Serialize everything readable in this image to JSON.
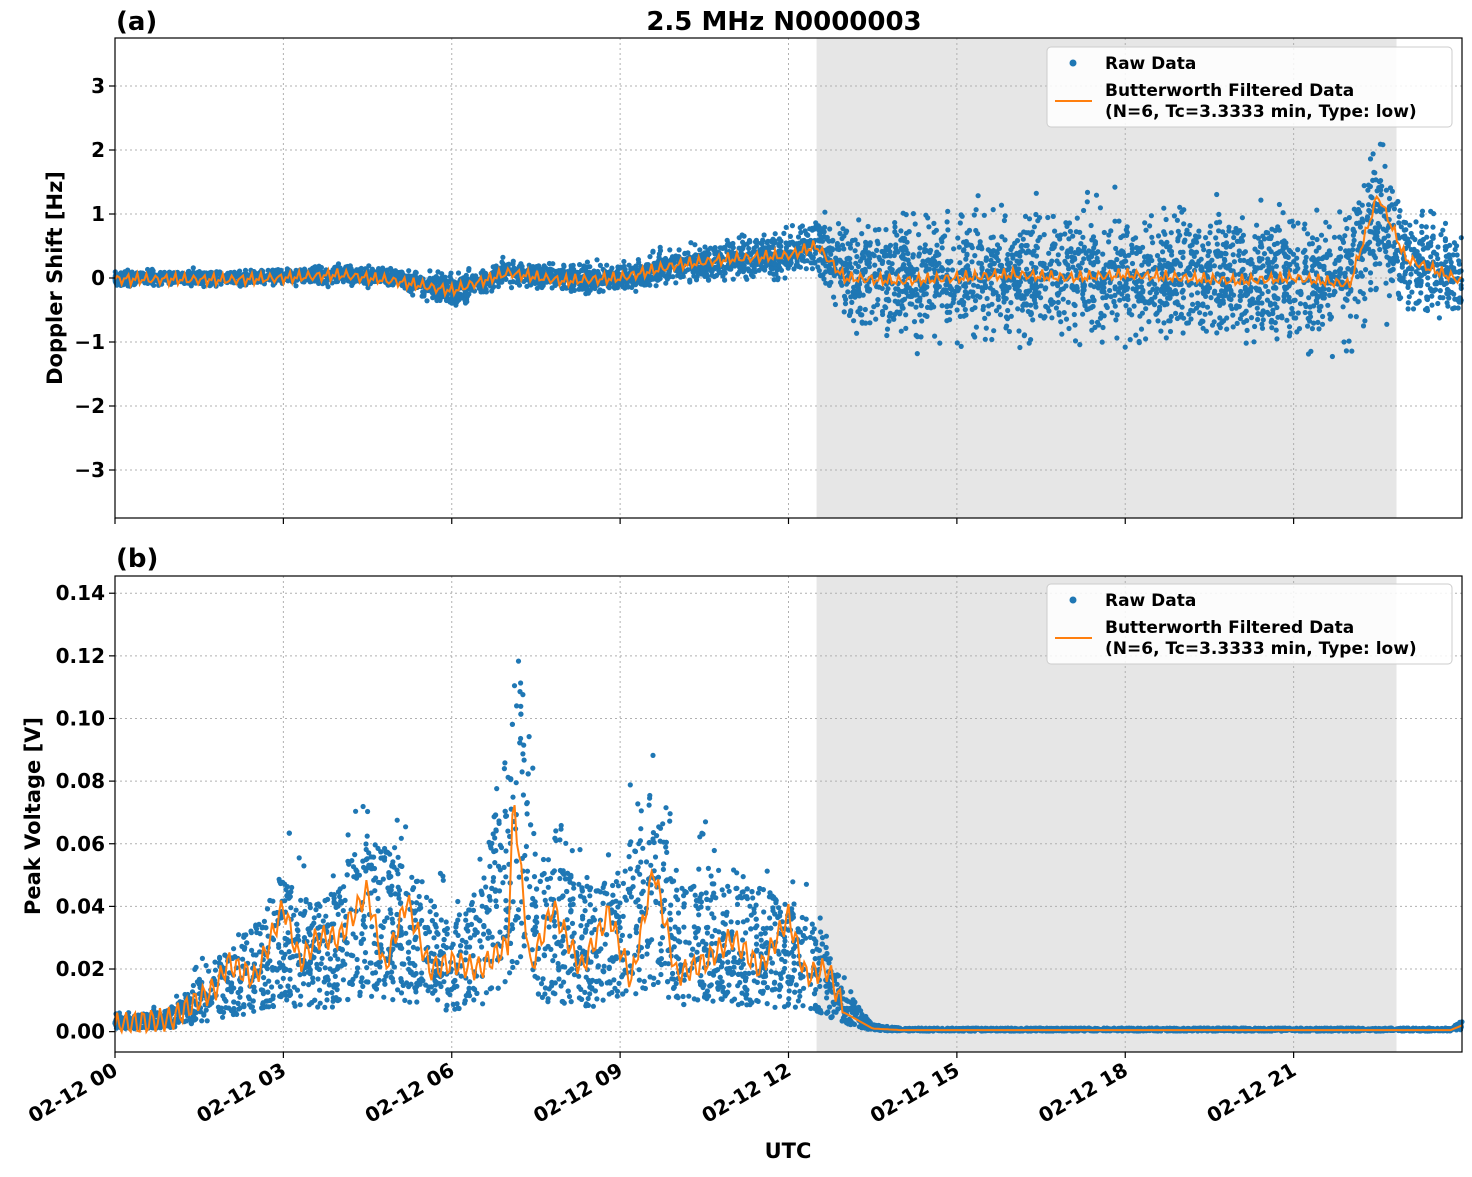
{
  "figure": {
    "title": "2.5 MHz N0000003",
    "xlabel": "UTC"
  },
  "chart_data": [
    {
      "type": "scatter",
      "panel": "(a)",
      "title": "2.5 MHz N0000003",
      "ylabel": "Doppler Shift [Hz]",
      "xlabel": "",
      "xlim": [
        "02-12 00:00",
        "02-13 00:00"
      ],
      "ylim": [
        -3.75,
        3.75
      ],
      "yticks": [
        -3,
        -2,
        -1,
        0,
        1,
        2,
        3
      ],
      "ytick_labels": [
        "−3",
        "−2",
        "−1",
        "0",
        "1",
        "2",
        "3"
      ],
      "xticks": [
        "02-12 00",
        "02-12 03",
        "02-12 06",
        "02-12 09",
        "02-12 12",
        "02-12 15",
        "02-12 18",
        "02-12 21"
      ],
      "grid": true,
      "legend_placement": "upper right",
      "shaded_interval": [
        "02-12 12:30",
        "02-12 22:50"
      ],
      "series": [
        {
          "name": "Raw Data",
          "style": "points",
          "color": "#1f77b4",
          "x_hours": [
            0,
            1,
            2,
            3,
            4,
            5,
            6,
            7,
            8,
            9,
            10,
            11,
            12,
            12.5,
            13,
            14,
            15,
            16,
            17,
            18,
            19,
            20,
            21,
            22,
            22.5,
            23,
            24
          ],
          "center": [
            0,
            0,
            0,
            0.02,
            0.05,
            0,
            -0.2,
            0.08,
            0,
            0,
            0.2,
            0.3,
            0.35,
            0.55,
            0.1,
            0.05,
            0,
            0.05,
            0.05,
            0.05,
            0.05,
            0.05,
            0,
            0.05,
            1.0,
            0.3,
            -0.05
          ],
          "spread": [
            0.12,
            0.12,
            0.12,
            0.12,
            0.15,
            0.15,
            0.25,
            0.2,
            0.2,
            0.22,
            0.28,
            0.32,
            0.35,
            0.45,
            0.8,
            1.0,
            1.05,
            1.0,
            1.0,
            1.0,
            1.0,
            1.05,
            1.1,
            1.15,
            1.45,
            1.0,
            0.7
          ]
        },
        {
          "name": "Butterworth Filtered Data\n(N=6, Tc=3.3333 min, Type: low)",
          "style": "line",
          "color": "#ff7f0e",
          "x_hours": [
            0,
            1,
            2,
            3,
            4,
            5,
            6,
            7,
            8,
            9,
            10,
            11,
            12,
            12.5,
            13,
            14,
            15,
            16,
            17,
            18,
            19,
            20,
            21,
            22,
            22.5,
            23,
            24
          ],
          "values": [
            -0.02,
            -0.02,
            -0.03,
            0.0,
            0.05,
            -0.05,
            -0.2,
            0.08,
            -0.05,
            0.0,
            0.2,
            0.3,
            0.35,
            0.5,
            0.0,
            -0.05,
            0.0,
            0.05,
            0.0,
            0.05,
            0.0,
            -0.05,
            0.0,
            -0.1,
            1.3,
            0.3,
            -0.05
          ]
        }
      ]
    },
    {
      "type": "scatter",
      "panel": "(b)",
      "ylabel": "Peak Voltage [V]",
      "xlabel": "UTC",
      "xlim": [
        "02-12 00:00",
        "02-13 00:00"
      ],
      "ylim": [
        -0.0065,
        0.1455
      ],
      "yticks": [
        0.0,
        0.02,
        0.04,
        0.06,
        0.08,
        0.1,
        0.12,
        0.14
      ],
      "ytick_labels": [
        "0.00",
        "0.02",
        "0.04",
        "0.06",
        "0.08",
        "0.10",
        "0.12",
        "0.14"
      ],
      "xticks": [
        "02-12 00",
        "02-12 03",
        "02-12 06",
        "02-12 09",
        "02-12 12",
        "02-12 15",
        "02-12 18",
        "02-12 21"
      ],
      "grid": true,
      "legend_placement": "upper right",
      "shaded_interval": [
        "02-12 12:30",
        "02-12 22:50"
      ],
      "series": [
        {
          "name": "Raw Data",
          "style": "points",
          "color": "#1f77b4",
          "x_hours": [
            0,
            1,
            1.8,
            2.5,
            3,
            3.5,
            4,
            4.5,
            5,
            5.5,
            6,
            6.5,
            7,
            7.2,
            7.5,
            8,
            8.5,
            9,
            9.6,
            10,
            10.5,
            11,
            11.5,
            12,
            12.5,
            13,
            13.5,
            14,
            16,
            18,
            20,
            22,
            23,
            23.8,
            24
          ],
          "values": [
            0.004,
            0.006,
            0.02,
            0.03,
            0.045,
            0.035,
            0.04,
            0.055,
            0.05,
            0.04,
            0.03,
            0.04,
            0.08,
            0.11,
            0.05,
            0.045,
            0.04,
            0.045,
            0.07,
            0.04,
            0.045,
            0.04,
            0.04,
            0.035,
            0.03,
            0.012,
            0.002,
            0.001,
            0.001,
            0.001,
            0.001,
            0.001,
            0.001,
            0.001,
            0.003
          ]
        },
        {
          "name": "Butterworth Filtered Data\n(N=6, Tc=3.3333 min, Type: low)",
          "style": "line",
          "color": "#ff7f0e",
          "x_hours": [
            0,
            1,
            1.8,
            2,
            2.5,
            3,
            3.3,
            3.6,
            4,
            4.5,
            4.8,
            5.2,
            5.6,
            6,
            6.5,
            7,
            7.1,
            7.4,
            7.8,
            8.3,
            8.8,
            9.2,
            9.6,
            10,
            10.5,
            11,
            11.5,
            12,
            12.3,
            12.7,
            13,
            13.5,
            14,
            16,
            18,
            20,
            22,
            23,
            23.8,
            24
          ],
          "values": [
            0.002,
            0.004,
            0.014,
            0.022,
            0.017,
            0.04,
            0.022,
            0.03,
            0.03,
            0.045,
            0.02,
            0.042,
            0.02,
            0.022,
            0.02,
            0.028,
            0.075,
            0.02,
            0.04,
            0.02,
            0.038,
            0.016,
            0.052,
            0.018,
            0.022,
            0.03,
            0.02,
            0.037,
            0.018,
            0.02,
            0.006,
            0.001,
            0.0005,
            0.0005,
            0.0005,
            0.0005,
            0.0005,
            0.0005,
            0.0005,
            0.002
          ]
        }
      ]
    }
  ],
  "panels": {
    "a": {
      "tag": "(a)",
      "ylabel": "Doppler Shift [Hz]",
      "legend_raw": "Raw Data",
      "legend_filt_1": "Butterworth Filtered Data",
      "legend_filt_2": "(N=6, Tc=3.3333 min, Type: low)"
    },
    "b": {
      "tag": "(b)",
      "ylabel": "Peak Voltage [V]",
      "legend_raw": "Raw Data",
      "legend_filt_1": "Butterworth Filtered Data",
      "legend_filt_2": "(N=6, Tc=3.3333 min, Type: low)"
    }
  },
  "colors": {
    "raw": "#1f77b4",
    "filtered": "#ff7f0e",
    "shade": "#e6e6e6",
    "grid": "#b0b0b0"
  }
}
